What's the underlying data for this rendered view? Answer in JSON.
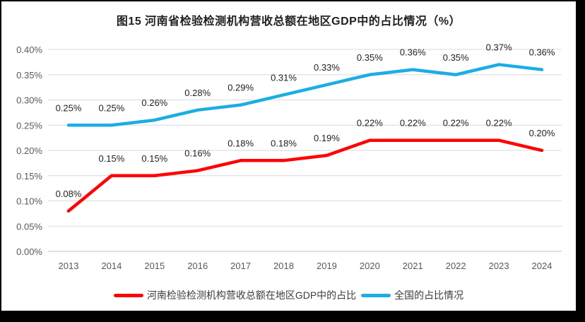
{
  "title": "图15  河南省检验检测机构营收总额在地区GDP中的占比情况（%）",
  "chart_data": {
    "type": "line",
    "title": "图15  河南省检验检测机构营收总额在地区GDP中的占比情况（%）",
    "categories": [
      "2013",
      "2014",
      "2015",
      "2016",
      "2017",
      "2018",
      "2019",
      "2020",
      "2021",
      "2022",
      "2023",
      "2024"
    ],
    "series": [
      {
        "name": "河南检验检测机构营收总额在地区GDP中的占比",
        "color": "#FF0000",
        "values": [
          0.08,
          0.15,
          0.15,
          0.16,
          0.18,
          0.18,
          0.19,
          0.22,
          0.22,
          0.22,
          0.22,
          0.2
        ],
        "labels": [
          "0.08%",
          "0.15%",
          "0.15%",
          "0.16%",
          "0.18%",
          "0.18%",
          "0.19%",
          "0.22%",
          "0.22%",
          "0.22%",
          "0.22%",
          "0.20%"
        ]
      },
      {
        "name": "全国的占比情况",
        "color": "#1CADE4",
        "values": [
          0.25,
          0.25,
          0.26,
          0.28,
          0.29,
          0.31,
          0.33,
          0.35,
          0.36,
          0.35,
          0.37,
          0.36
        ],
        "labels": [
          "0.25%",
          "0.25%",
          "0.26%",
          "0.28%",
          "0.29%",
          "0.31%",
          "0.33%",
          "0.35%",
          "0.36%",
          "0.35%",
          "0.37%",
          "0.36%"
        ]
      }
    ],
    "xlabel": "",
    "ylabel": "",
    "ylim": [
      0,
      0.4
    ],
    "y_ticks": [
      "0.40%",
      "0.35%",
      "0.30%",
      "0.25%",
      "0.20%",
      "0.15%",
      "0.10%",
      "0.05%",
      "0.00%"
    ],
    "values_unit": "%",
    "grid": true,
    "legend_position": "bottom"
  }
}
